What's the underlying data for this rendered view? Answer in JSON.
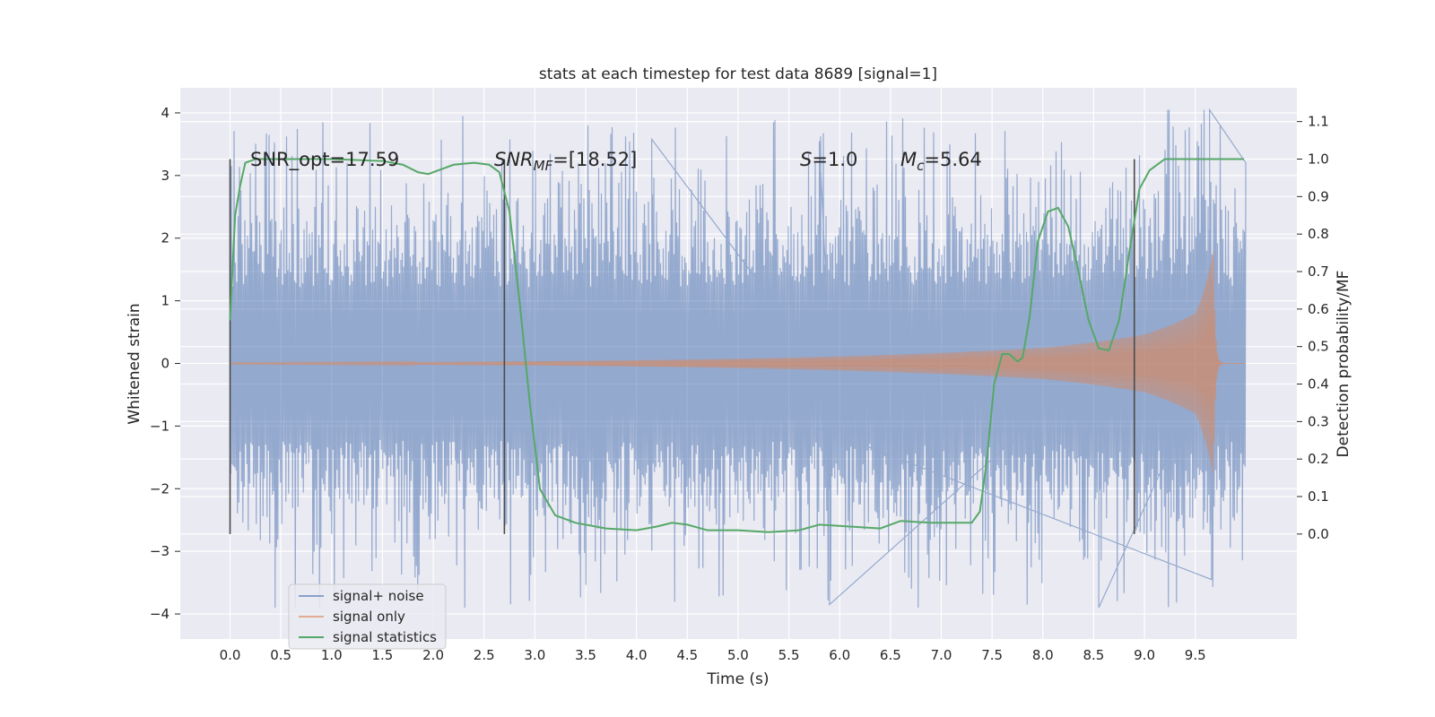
{
  "chart_data": {
    "type": "line",
    "title": "stats at each timestep for test data 8689 [signal=1]",
    "xlabel": "Time (s)",
    "ylabel": "Whitened strain",
    "y2label": "Detection probability/MF",
    "xlim": [
      -0.49,
      10.5
    ],
    "ylim": [
      -4.4,
      4.4
    ],
    "y2lim": [
      -0.28,
      1.19
    ],
    "xticks": [
      "0.0",
      "0.5",
      "1.0",
      "1.5",
      "2.0",
      "2.5",
      "3.0",
      "3.5",
      "4.0",
      "4.5",
      "5.0",
      "5.5",
      "6.0",
      "6.5",
      "7.0",
      "7.5",
      "8.0",
      "8.5",
      "9.0",
      "9.5"
    ],
    "yticks": [
      "4",
      "3",
      "2",
      "1",
      "0",
      "−1",
      "−2",
      "−3",
      "−4"
    ],
    "y2ticks": [
      "1.1",
      "1.0",
      "0.9",
      "0.8",
      "0.7",
      "0.6",
      "0.5",
      "0.4",
      "0.3",
      "0.2",
      "0.1",
      "0.0"
    ],
    "grid": true,
    "legend_position": "lower-left",
    "background": "#eaeaf2",
    "annotations": [
      {
        "pre": "SNR_opt=17.59",
        "italic": "",
        "sub": "",
        "post": ""
      },
      {
        "pre": "",
        "italic": "SNR",
        "sub": "MF",
        "post": "=[18.52]"
      },
      {
        "pre": "",
        "italic": "S",
        "sub": "",
        "post": "=1.0"
      },
      {
        "pre": "",
        "italic": "M",
        "sub": "c",
        "post": "=5.64"
      }
    ],
    "vertical_markers_x": [
      0.0,
      2.7,
      8.9
    ],
    "series": [
      {
        "name": "signal+ noise",
        "color": "#4c72b0",
        "kind": "noise",
        "x_range": [
          0.0,
          10.0
        ],
        "envelope_abs": 2.2,
        "peak_max": 4.05,
        "peak_min": -3.9
      },
      {
        "name": "signal only",
        "color": "#dd8452",
        "kind": "chirp",
        "merger_time": 9.68,
        "amplitude_at_start": 0.01,
        "amplitude_at_8s": 0.25,
        "amplitude_at_9s": 0.46,
        "amplitude_at_9_5s": 0.8,
        "amplitude_peak": 1.8
      },
      {
        "name": "signal statistics",
        "color": "#55a868",
        "kind": "probability",
        "axis": "right",
        "x": [
          0.0,
          0.05,
          0.1,
          0.15,
          0.25,
          0.4,
          0.6,
          1.0,
          1.5,
          1.7,
          1.85,
          1.95,
          2.05,
          2.2,
          2.4,
          2.55,
          2.65,
          2.75,
          2.85,
          2.95,
          3.05,
          3.2,
          3.4,
          3.7,
          4.0,
          4.2,
          4.35,
          4.5,
          4.7,
          5.0,
          5.3,
          5.6,
          5.8,
          6.1,
          6.4,
          6.6,
          6.9,
          7.2,
          7.3,
          7.38,
          7.45,
          7.52,
          7.6,
          7.67,
          7.75,
          7.8,
          7.87,
          7.95,
          8.05,
          8.15,
          8.25,
          8.35,
          8.45,
          8.55,
          8.65,
          8.75,
          8.85,
          8.95,
          9.05,
          9.2,
          9.4,
          9.6,
          9.8,
          9.98
        ],
        "y": [
          0.57,
          0.85,
          0.93,
          0.99,
          1.0,
          1.0,
          1.0,
          1.0,
          0.995,
          0.985,
          0.965,
          0.96,
          0.97,
          0.985,
          0.99,
          0.985,
          0.965,
          0.86,
          0.62,
          0.35,
          0.12,
          0.05,
          0.03,
          0.015,
          0.01,
          0.02,
          0.03,
          0.025,
          0.01,
          0.01,
          0.005,
          0.01,
          0.025,
          0.02,
          0.015,
          0.035,
          0.03,
          0.03,
          0.03,
          0.06,
          0.2,
          0.4,
          0.48,
          0.48,
          0.46,
          0.47,
          0.58,
          0.78,
          0.86,
          0.87,
          0.82,
          0.7,
          0.57,
          0.495,
          0.49,
          0.57,
          0.75,
          0.92,
          0.97,
          1.0,
          1.0,
          1.0,
          1.0,
          1.0
        ]
      }
    ]
  }
}
